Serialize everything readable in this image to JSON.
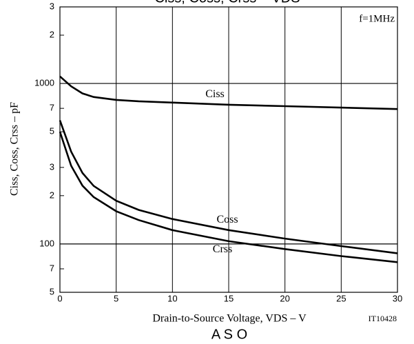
{
  "chart_data": {
    "type": "line",
    "title": "Ciss, Coss, Crss – VDS",
    "xlabel": "Drain-to-Source Voltage, VDS – V",
    "ylabel": "Ciss, Coss, Crss – pF",
    "annotations": [
      "f=1MHz",
      "IT10428",
      "A S O"
    ],
    "x": [
      0,
      1,
      2,
      3,
      5,
      7,
      10,
      15,
      20,
      25,
      30
    ],
    "series": [
      {
        "name": "Ciss",
        "color": "#000000",
        "values": [
          1107,
          960,
          867,
          824,
          790,
          775,
          760,
          737,
          722,
          707,
          693
        ]
      },
      {
        "name": "Coss",
        "color": "#000000",
        "values": [
          589,
          376,
          277,
          230,
          186,
          163,
          143,
          122,
          108,
          97,
          87.5
        ]
      },
      {
        "name": "Crss",
        "color": "#000000",
        "values": [
          500,
          307,
          231,
          196,
          160,
          141,
          122,
          104,
          93,
          84,
          77
        ]
      }
    ],
    "xlim": [
      0,
      30
    ],
    "xticks": [
      0,
      5,
      10,
      15,
      20,
      25,
      30
    ],
    "ylim": [
      50,
      3000
    ],
    "log_y": true,
    "yticks": [
      {
        "value": 3000,
        "label": "3"
      },
      {
        "value": 2000,
        "label": "2"
      },
      1000,
      {
        "value": 700,
        "label": "7"
      },
      {
        "value": 500,
        "label": "5"
      },
      {
        "value": 300,
        "label": "3"
      },
      {
        "value": 200,
        "label": "2"
      },
      100,
      {
        "value": 70,
        "label": "7"
      },
      {
        "value": 50,
        "label": "5"
      }
    ],
    "grid": true
  }
}
